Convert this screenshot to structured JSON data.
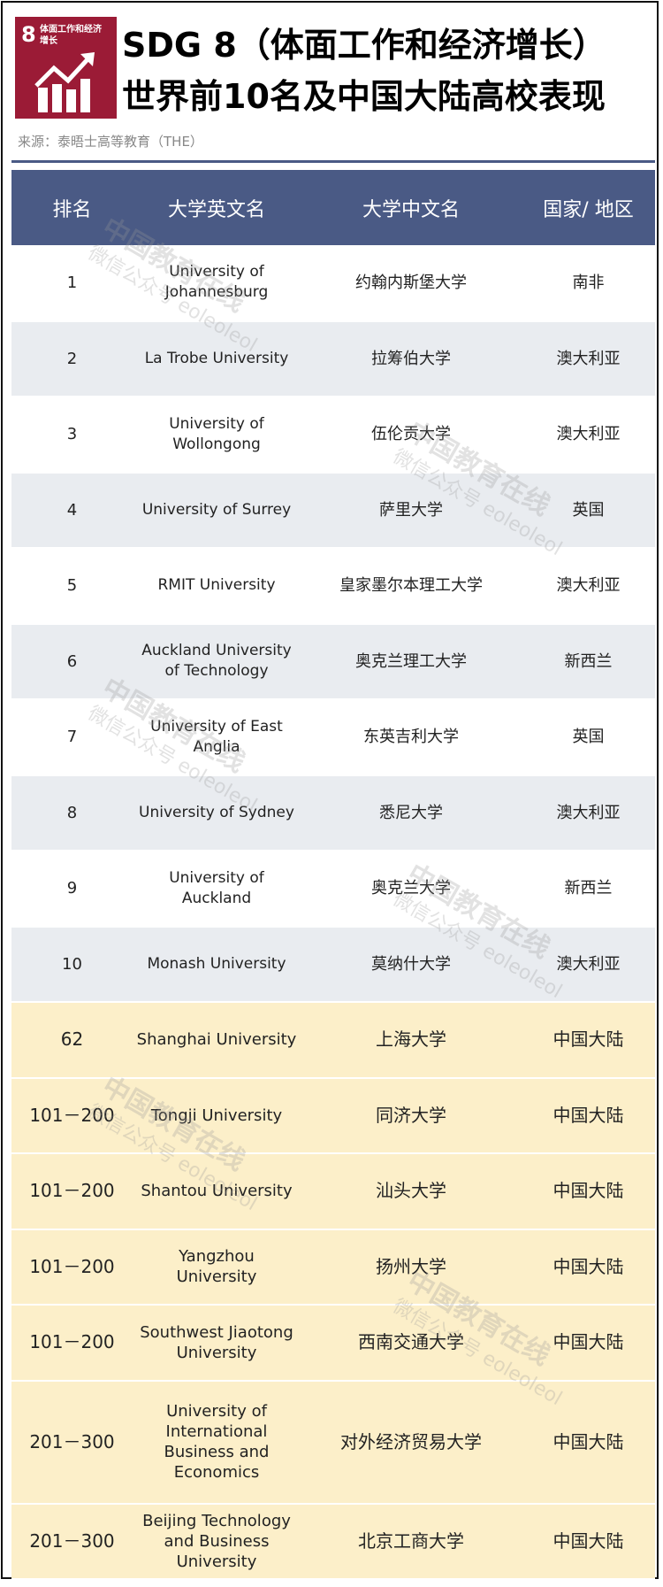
{
  "logo": {
    "number": "8",
    "text": "体面工作和经济增长",
    "icon": "growth-chart-arrow-icon",
    "color": "#9b1b36"
  },
  "title": {
    "line1": "SDG 8（体面工作和经济增长）",
    "line2": "世界前10名及中国大陆高校表现"
  },
  "source": "来源：泰晤士高等教育（THE）",
  "watermark": {
    "line1": "中国教育在线",
    "line2": "微信公众号 eoleoleol"
  },
  "colors": {
    "header": "#4a5a85",
    "alt_row": "#e9ecf0",
    "mainland_row": "#fcefc9"
  },
  "table": {
    "headers": [
      "排名",
      "大学英文名",
      "大学中文名",
      "国家/ 地区"
    ],
    "rows": [
      {
        "rank": "1",
        "en": "University of Johannesburg",
        "cn": "约翰内斯堡大学",
        "region": "南非"
      },
      {
        "rank": "2",
        "en": "La Trobe University",
        "cn": "拉筹伯大学",
        "region": "澳大利亚"
      },
      {
        "rank": "3",
        "en": "University of Wollongong",
        "cn": "伍伦贡大学",
        "region": "澳大利亚"
      },
      {
        "rank": "4",
        "en": "University of Surrey",
        "cn": "萨里大学",
        "region": "英国"
      },
      {
        "rank": "5",
        "en": "RMIT University",
        "cn": "皇家墨尔本理工大学",
        "region": "澳大利亚"
      },
      {
        "rank": "6",
        "en": "Auckland University of Technology",
        "cn": "奥克兰理工大学",
        "region": "新西兰"
      },
      {
        "rank": "7",
        "en": "University of East Anglia",
        "cn": "东英吉利大学",
        "region": "英国"
      },
      {
        "rank": "8",
        "en": "University of Sydney",
        "cn": "悉尼大学",
        "region": "澳大利亚"
      },
      {
        "rank": "9",
        "en": "University of Auckland",
        "cn": "奥克兰大学",
        "region": "新西兰"
      },
      {
        "rank": "10",
        "en": "Monash University",
        "cn": "莫纳什大学",
        "region": "澳大利亚"
      },
      {
        "rank": "62",
        "en": "Shanghai University",
        "cn": "上海大学",
        "region": "中国大陆"
      },
      {
        "rank": "101－200",
        "en": "Tongji University",
        "cn": "同济大学",
        "region": "中国大陆"
      },
      {
        "rank": "101－200",
        "en": "Shantou University",
        "cn": "汕头大学",
        "region": "中国大陆"
      },
      {
        "rank": "101－200",
        "en": "Yangzhou University",
        "cn": "扬州大学",
        "region": "中国大陆"
      },
      {
        "rank": "101－200",
        "en": "Southwest Jiaotong University",
        "cn": "西南交通大学",
        "region": "中国大陆"
      },
      {
        "rank": "201－300",
        "en": "University of International Business and Economics",
        "cn": "对外经济贸易大学",
        "region": "中国大陆"
      },
      {
        "rank": "201－300",
        "en": "Beijing Technology and Business University",
        "cn": "北京工商大学",
        "region": "中国大陆"
      }
    ]
  }
}
